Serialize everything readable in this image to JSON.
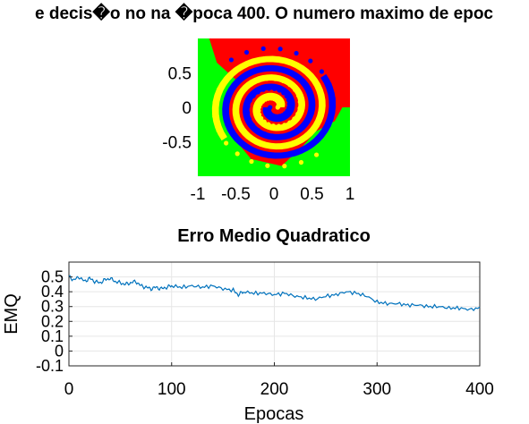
{
  "chart_data": [
    {
      "type": "scatter",
      "title": "e decis�o no na �poca 400. O numero maximo de epoc",
      "xlim": [
        -1,
        1
      ],
      "ylim": [
        -1,
        1
      ],
      "x_ticks": [
        "-1",
        "-0.5",
        "0",
        "0.5",
        "1"
      ],
      "y_ticks": [
        "0.5",
        "0",
        "-0.5"
      ],
      "decision_regions": [
        "red",
        "yellow",
        "blue",
        "green"
      ],
      "series": [
        {
          "color": "#ffff00",
          "spiral_arm": "yellow"
        },
        {
          "color": "#0000ff",
          "spiral_arm": "blue"
        }
      ],
      "colors": {
        "red": "#ff0000",
        "yellow": "#ffff00",
        "blue": "#0000ff",
        "green": "#00ff00"
      }
    },
    {
      "type": "line",
      "title": "Erro Medio Quadratico",
      "xlabel": "Epocas",
      "ylabel": "EMQ",
      "xlim": [
        0,
        400
      ],
      "ylim": [
        -0.1,
        0.6
      ],
      "x_ticks": [
        "0",
        "100",
        "200",
        "300",
        "400"
      ],
      "y_ticks": [
        "0.5",
        "0.4",
        "0.3",
        "0.2",
        "0.1",
        "0",
        "-0.1"
      ],
      "grid": true,
      "line_color": "#0072bd",
      "x": [
        0,
        5,
        10,
        15,
        20,
        25,
        30,
        35,
        40,
        45,
        50,
        55,
        60,
        65,
        70,
        75,
        80,
        85,
        90,
        95,
        100,
        110,
        120,
        130,
        140,
        150,
        160,
        165,
        170,
        180,
        190,
        200,
        210,
        220,
        230,
        240,
        250,
        260,
        270,
        280,
        290,
        300,
        310,
        320,
        330,
        340,
        350,
        360,
        370,
        380,
        390,
        400
      ],
      "y": [
        0.5,
        0.48,
        0.5,
        0.47,
        0.49,
        0.47,
        0.46,
        0.48,
        0.49,
        0.47,
        0.46,
        0.45,
        0.46,
        0.47,
        0.44,
        0.43,
        0.42,
        0.43,
        0.42,
        0.43,
        0.44,
        0.43,
        0.44,
        0.43,
        0.44,
        0.42,
        0.41,
        0.38,
        0.4,
        0.39,
        0.39,
        0.38,
        0.39,
        0.37,
        0.36,
        0.35,
        0.37,
        0.38,
        0.4,
        0.39,
        0.37,
        0.33,
        0.32,
        0.32,
        0.31,
        0.31,
        0.3,
        0.3,
        0.29,
        0.29,
        0.28,
        0.29
      ]
    }
  ]
}
